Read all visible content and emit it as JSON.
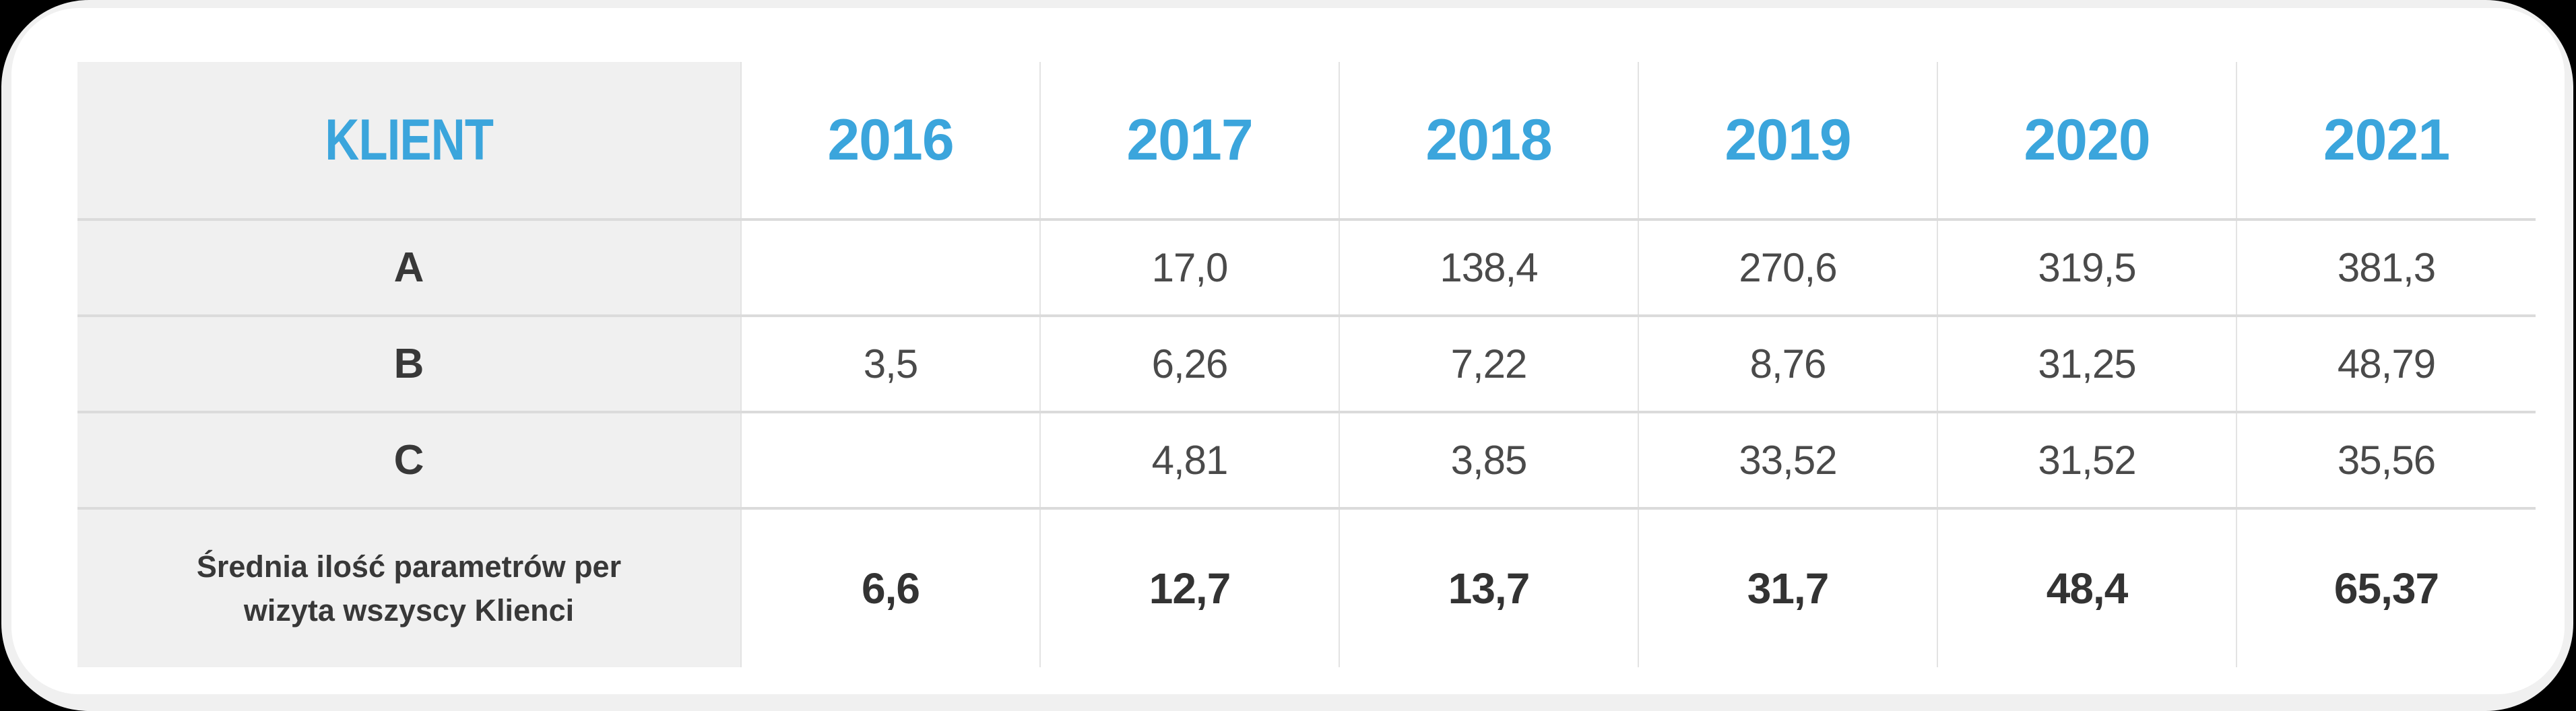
{
  "table": {
    "header": {
      "klient": "KLIENT",
      "years": [
        "2016",
        "2017",
        "2018",
        "2019",
        "2020",
        "2021"
      ]
    },
    "rows": [
      {
        "label": "A",
        "values": [
          "",
          "17,0",
          "138,4",
          "270,6",
          "319,5",
          "381,3"
        ]
      },
      {
        "label": "B",
        "values": [
          "3,5",
          "6,26",
          "7,22",
          "8,76",
          "31,25",
          "48,79"
        ]
      },
      {
        "label": "C",
        "values": [
          "",
          "4,81",
          "3,85",
          "33,52",
          "31,52",
          "35,56"
        ]
      }
    ],
    "summary": {
      "label": "Średnia ilość parametrów per wizyta wszyscy Klienci",
      "values": [
        "6,6",
        "12,7",
        "13,7",
        "31,7",
        "48,4",
        "65,37"
      ]
    }
  },
  "colors": {
    "background": "#000000",
    "card": "#FFFFFF",
    "card_ring": "#F0F0F0",
    "accent_blue": "#3BA5DC",
    "label_column_bg": "#F0F0F0",
    "row_separator": "#DBDBDB",
    "column_separator": "#E3E3E3",
    "text_dark": "#383838",
    "text_number": "#4A4A4A"
  },
  "chart_data": {
    "type": "table",
    "columns": [
      "KLIENT",
      "2016",
      "2017",
      "2018",
      "2019",
      "2020",
      "2021"
    ],
    "rows": [
      [
        "A",
        null,
        17.0,
        138.4,
        270.6,
        319.5,
        381.3
      ],
      [
        "B",
        3.5,
        6.26,
        7.22,
        8.76,
        31.25,
        48.79
      ],
      [
        "C",
        null,
        4.81,
        3.85,
        33.52,
        31.52,
        35.56
      ],
      [
        "Średnia ilość parametrów per wizyta wszyscy Klienci",
        6.6,
        12.7,
        13.7,
        31.7,
        48.4,
        65.37
      ]
    ],
    "notes": "Decimal comma formatting as displayed; empty cells for A-2016 and C-2016"
  }
}
